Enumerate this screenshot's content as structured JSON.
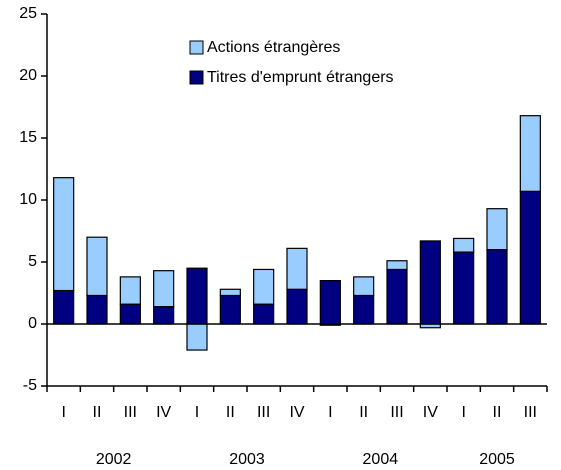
{
  "chart_data": {
    "type": "stacked-bar",
    "categories": [
      "I",
      "II",
      "III",
      "IV",
      "I",
      "II",
      "III",
      "IV",
      "I",
      "II",
      "III",
      "IV",
      "I",
      "II",
      "III"
    ],
    "x_groups": [
      {
        "label": "2002",
        "size": 4
      },
      {
        "label": "2003",
        "size": 4
      },
      {
        "label": "2004",
        "size": 4
      },
      {
        "label": "2005",
        "size": 3
      }
    ],
    "series": [
      {
        "name": "Titres d'emprunt étrangers",
        "color": "#000080",
        "values": [
          2.7,
          2.3,
          1.6,
          1.4,
          4.5,
          2.3,
          1.6,
          2.8,
          3.5,
          2.3,
          4.4,
          6.7,
          5.8,
          6.0,
          10.7
        ]
      },
      {
        "name": "Actions étrangères",
        "color": "#99ccff",
        "values": [
          9.1,
          4.7,
          2.2,
          2.9,
          -2.1,
          0.5,
          2.8,
          3.3,
          -0.1,
          1.5,
          0.7,
          -0.3,
          1.1,
          3.3,
          6.1
        ]
      }
    ],
    "ylim": [
      -5,
      25
    ],
    "yticks": [
      -5,
      0,
      5,
      10,
      15,
      20,
      25
    ],
    "legend": "top-center"
  }
}
